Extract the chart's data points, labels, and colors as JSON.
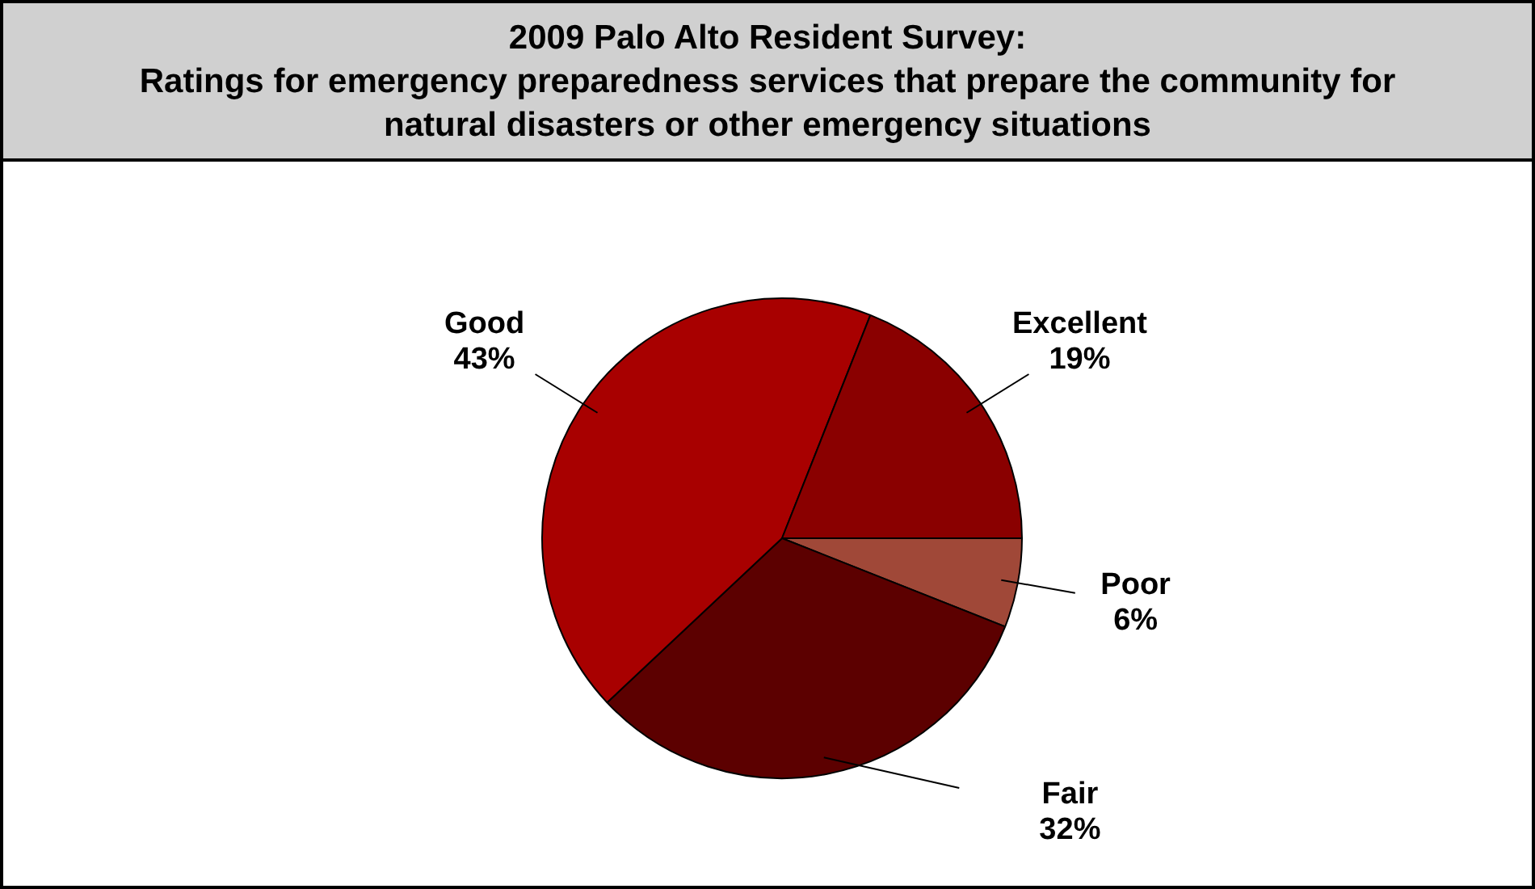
{
  "chart_data": {
    "type": "pie",
    "title": "2009 Palo Alto Resident Survey:",
    "subtitle": "Ratings for emergency preparedness services that prepare the community for natural disasters or other emergency situations",
    "categories": [
      "Excellent",
      "Good",
      "Fair",
      "Poor"
    ],
    "values": [
      19,
      43,
      32,
      6
    ],
    "value_labels": [
      "19%",
      "43%",
      "32%",
      "6%"
    ],
    "colors": [
      "#8a0000",
      "#a80000",
      "#5c0000",
      "#a04838"
    ],
    "legend": false
  }
}
